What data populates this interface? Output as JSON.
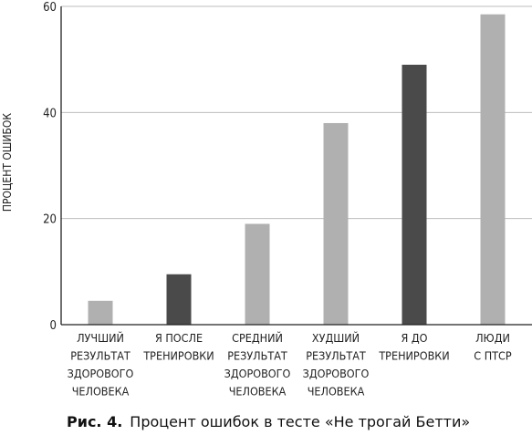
{
  "caption": {
    "prefix": "Рис. 4.",
    "text": "Процент ошибок в тесте «Не трогай Бетти»"
  },
  "chart_data": {
    "type": "bar",
    "title": "",
    "xlabel": "",
    "ylabel": "ПРОЦЕНТ ОШИБОК",
    "ylim": [
      0,
      60
    ],
    "yticks": [
      0,
      20,
      40,
      60
    ],
    "grid": true,
    "categories": [
      [
        "ЛУЧШИЙ",
        "РЕЗУЛЬТАТ",
        "ЗДОРОВОГО",
        "ЧЕЛОВЕКА"
      ],
      [
        "Я ПОСЛЕ",
        "ТРЕНИРОВКИ"
      ],
      [
        "СРЕДНИЙ",
        "РЕЗУЛЬТАТ",
        "ЗДОРОВОГО",
        "ЧЕЛОВЕКА"
      ],
      [
        "ХУДШИЙ",
        "РЕЗУЛЬТАТ",
        "ЗДОРОВОГО",
        "ЧЕЛОВЕКА"
      ],
      [
        "Я ДО",
        "ТРЕНИРОВКИ"
      ],
      [
        "ЛЮДИ",
        "С ПТСР"
      ]
    ],
    "values": [
      4.5,
      9.5,
      19,
      38,
      49,
      58.5
    ],
    "bar_colors": [
      "#b0b0b0",
      "#4a4a4a",
      "#b0b0b0",
      "#b0b0b0",
      "#4a4a4a",
      "#b0b0b0"
    ],
    "grid_color": "#bdbdbd",
    "axis_color": "#222222"
  }
}
